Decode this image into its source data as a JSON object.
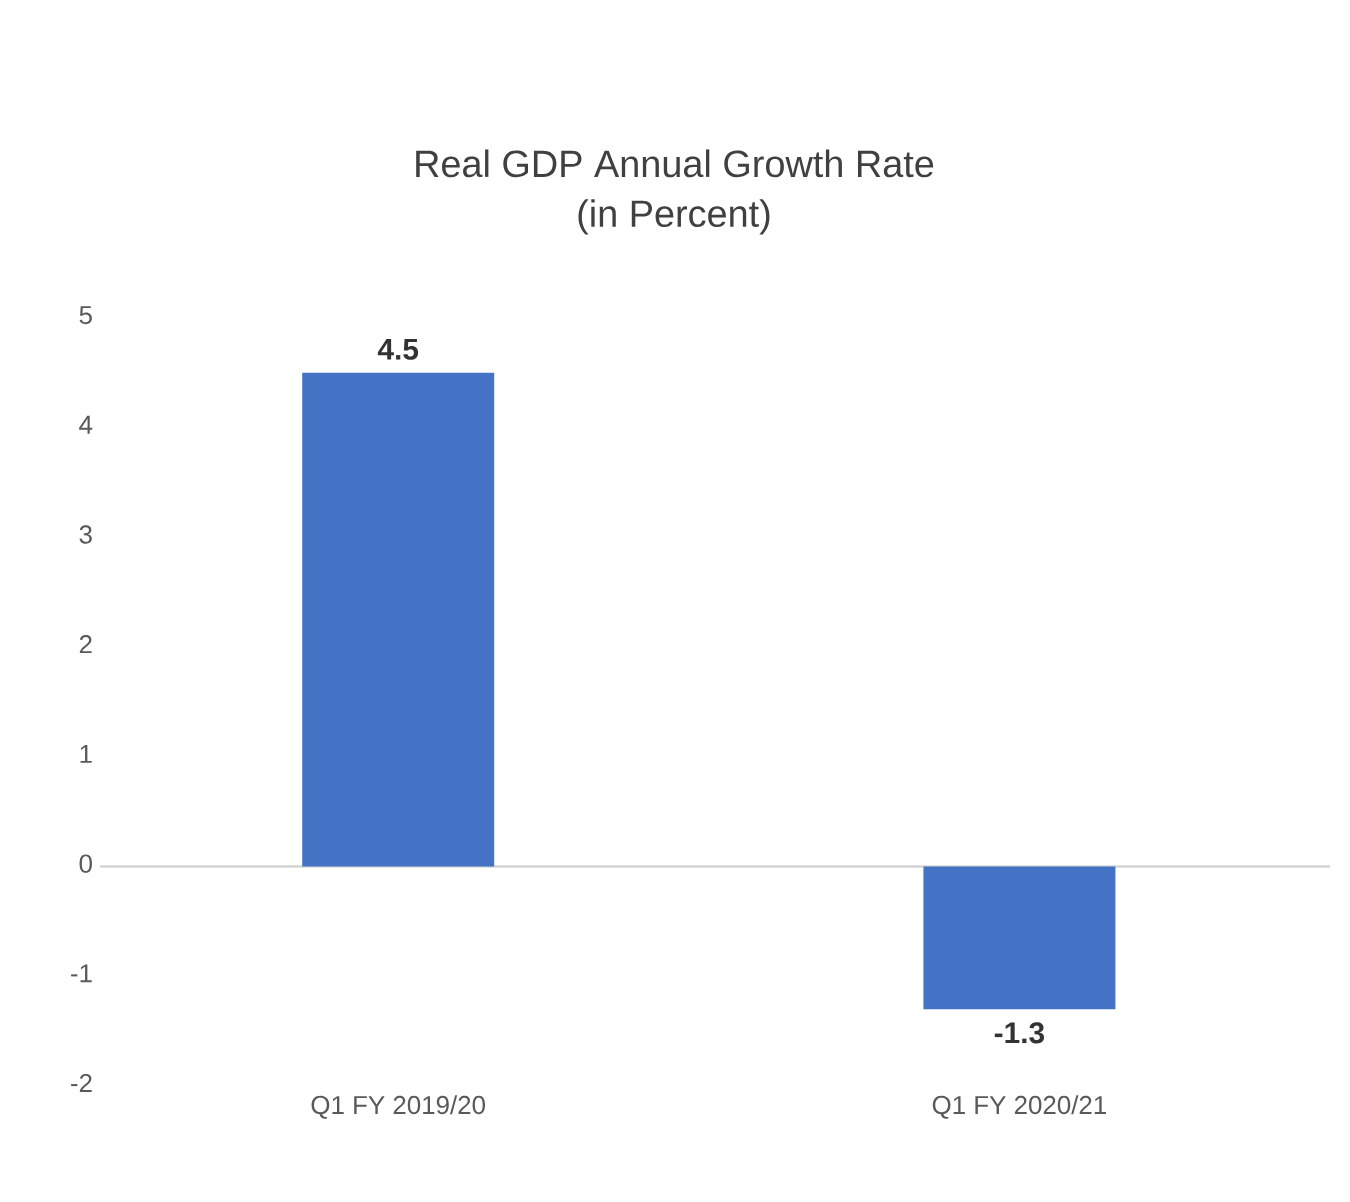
{
  "chart_data": {
    "type": "bar",
    "title": "Real GDP Annual Growth Rate",
    "subtitle": "(in Percent)",
    "categories": [
      "Q1 FY 2019/20",
      "Q1 FY 2020/21"
    ],
    "values": [
      4.5,
      -1.3
    ],
    "color": "#4472c4",
    "ylim": [
      -2,
      5
    ],
    "yticks": [
      -2,
      -1,
      0,
      1,
      2,
      3,
      4,
      5
    ],
    "data_labels": true
  }
}
